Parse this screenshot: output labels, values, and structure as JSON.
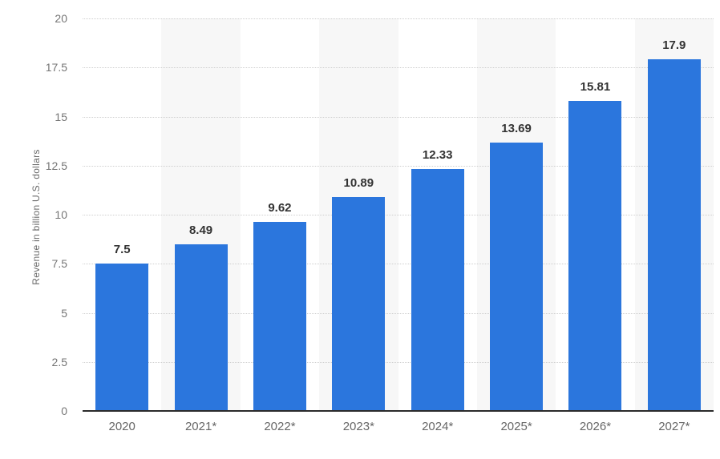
{
  "chart_data": {
    "type": "bar",
    "title": "",
    "xlabel": "",
    "ylabel": "Revenue in billion U.S. dollars",
    "categories": [
      "2020",
      "2021*",
      "2022*",
      "2023*",
      "2024*",
      "2025*",
      "2026*",
      "2027*"
    ],
    "values": [
      7.5,
      8.49,
      9.62,
      10.89,
      12.33,
      13.69,
      15.81,
      17.9
    ],
    "value_labels": [
      "7.5",
      "8.49",
      "9.62",
      "10.89",
      "12.33",
      "13.69",
      "15.81",
      "17.9"
    ],
    "ylim": [
      0,
      20
    ],
    "yticks": [
      "0",
      "2.5",
      "5",
      "7.5",
      "10",
      "12.5",
      "15",
      "17.5",
      "20"
    ],
    "grid": "horizontal-dotted",
    "legend": "none",
    "bar_color": "#2b76dd",
    "band_color": "#f7f7f7",
    "gridline_color": "#cfcfcf",
    "axis_line_color": "#2b2b2b",
    "value_label_color": "#333333",
    "tick_label_color": "#757575",
    "category_label_color": "#666666",
    "alternating_column_bands": "shaded on 2021*, 2023*, 2025*, 2027* columns"
  }
}
